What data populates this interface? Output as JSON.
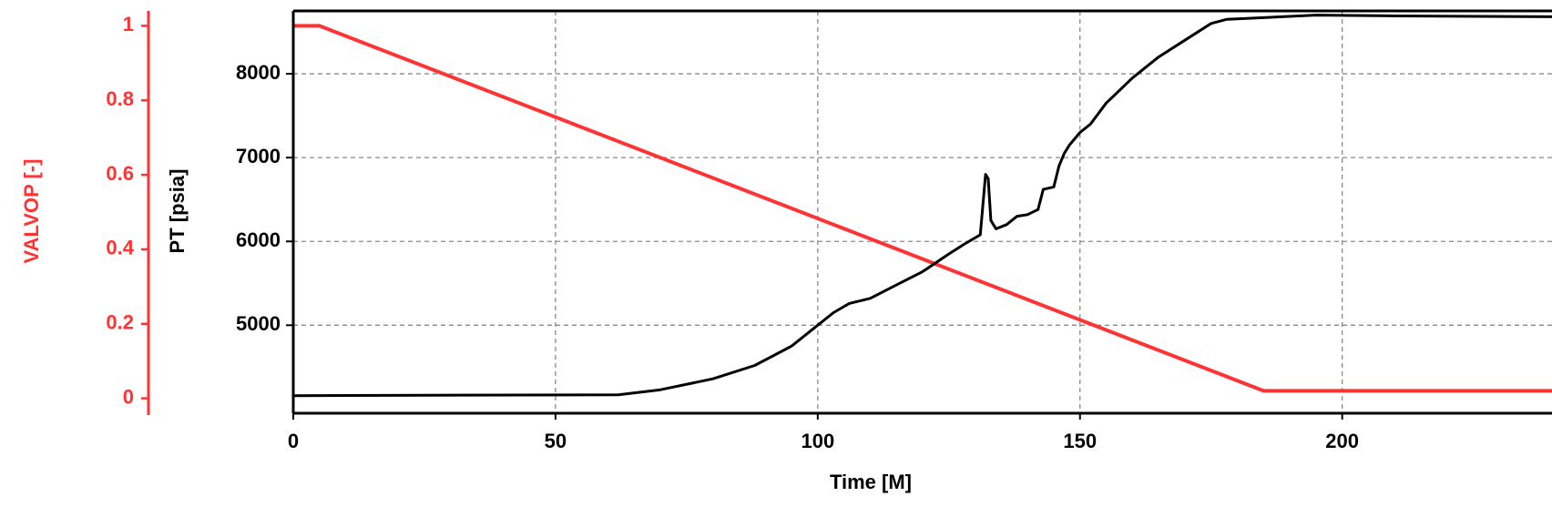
{
  "chart_data": {
    "type": "line",
    "xlabel": "Time [M]",
    "xlim": [
      0,
      240
    ],
    "xticks": [
      0,
      50,
      100,
      150,
      200
    ],
    "grid": true,
    "y_axes": [
      {
        "id": "valvop",
        "label": "VALVOP [-]",
        "color": "#ff3333",
        "lim": [
          -0.04,
          1.04
        ],
        "ticks": [
          0,
          0.2,
          0.4,
          0.6,
          0.8,
          1
        ]
      },
      {
        "id": "pt",
        "label": "PT [psia]",
        "color": "#000000",
        "lim": [
          3950,
          8750
        ],
        "ticks": [
          5000,
          6000,
          7000,
          8000
        ]
      }
    ],
    "series": [
      {
        "axis": "valvop",
        "color": "#ff3333",
        "x": [
          0,
          5,
          185,
          240
        ],
        "y": [
          1.0,
          1.0,
          0.02,
          0.02
        ]
      },
      {
        "axis": "pt",
        "color": "#000000",
        "x": [
          0,
          62,
          70,
          80,
          88,
          95,
          100,
          103,
          106,
          110,
          115,
          120,
          125,
          128,
          131,
          132,
          132.5,
          133,
          134,
          136,
          138,
          140,
          142,
          143,
          145,
          146,
          147,
          148,
          150,
          152,
          155,
          160,
          165,
          170,
          175,
          178,
          185,
          195,
          210,
          240
        ],
        "y": [
          4160,
          4170,
          4230,
          4360,
          4520,
          4750,
          5000,
          5150,
          5260,
          5320,
          5480,
          5640,
          5850,
          5970,
          6080,
          6800,
          6750,
          6250,
          6150,
          6200,
          6300,
          6320,
          6380,
          6620,
          6650,
          6900,
          7050,
          7150,
          7300,
          7400,
          7650,
          7950,
          8200,
          8400,
          8600,
          8650,
          8670,
          8700,
          8690,
          8680
        ]
      }
    ]
  }
}
